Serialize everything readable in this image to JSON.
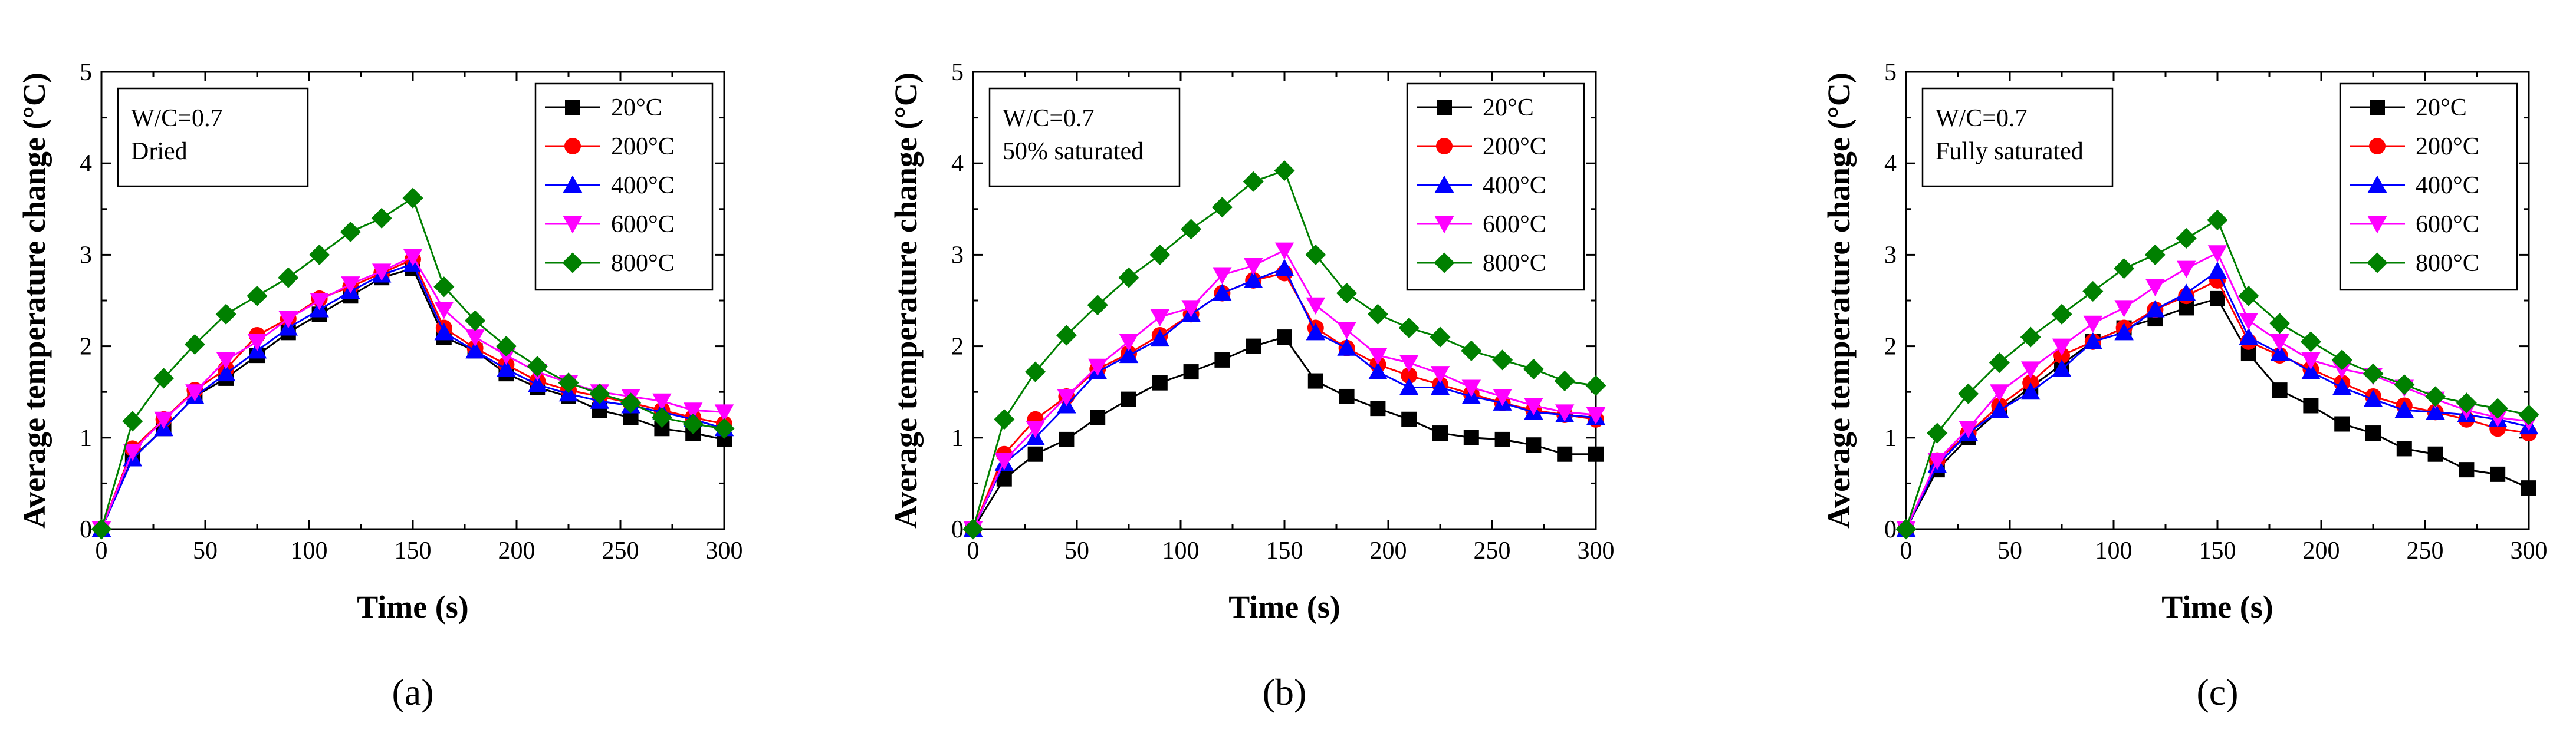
{
  "colors": {
    "20": "#000000",
    "200": "#ff0000",
    "400": "#0000ff",
    "600": "#ff00ff",
    "800": "#008000"
  },
  "marker_names": {
    "20": "square",
    "200": "circle",
    "400": "triangle-up",
    "600": "triangle-down",
    "800": "diamond"
  },
  "chart_data": [
    {
      "type": "line",
      "panel_label": "(a)",
      "annotation": [
        "W/C=0.7",
        "Dried"
      ],
      "xlabel": "Time (s)",
      "ylabel": "Average temperature change (°C)",
      "xlim": [
        0,
        300
      ],
      "ylim": [
        0,
        5
      ],
      "xticks": [
        0,
        50,
        100,
        150,
        200,
        250,
        300
      ],
      "yticks": [
        0,
        1,
        2,
        3,
        4,
        5
      ],
      "legend": "top-right",
      "grid": false,
      "x": [
        0,
        15,
        30,
        45,
        60,
        75,
        90,
        105,
        120,
        135,
        150,
        165,
        180,
        195,
        210,
        225,
        240,
        255,
        270,
        285,
        300
      ],
      "series": [
        {
          "name": "20°C",
          "key": "20",
          "values": [
            0,
            0.78,
            1.1,
            1.45,
            1.65,
            1.9,
            2.15,
            2.35,
            2.55,
            2.75,
            2.85,
            2.1,
            1.95,
            1.7,
            1.55,
            1.45,
            1.3,
            1.22,
            1.1,
            1.05,
            0.98
          ]
        },
        {
          "name": "200°C",
          "key": "200",
          "values": [
            0,
            0.88,
            1.2,
            1.52,
            1.75,
            2.12,
            2.3,
            2.52,
            2.65,
            2.8,
            2.95,
            2.2,
            1.98,
            1.8,
            1.62,
            1.52,
            1.45,
            1.38,
            1.3,
            1.22,
            1.15
          ]
        },
        {
          "name": "400°C",
          "key": "400",
          "values": [
            0,
            0.77,
            1.1,
            1.45,
            1.7,
            1.95,
            2.2,
            2.4,
            2.6,
            2.78,
            2.9,
            2.15,
            1.95,
            1.75,
            1.58,
            1.48,
            1.4,
            1.35,
            1.28,
            1.2,
            1.1
          ]
        },
        {
          "name": "600°C",
          "key": "600",
          "values": [
            0,
            0.85,
            1.2,
            1.5,
            1.85,
            2.05,
            2.3,
            2.5,
            2.68,
            2.82,
            2.98,
            2.4,
            2.1,
            1.9,
            1.72,
            1.6,
            1.5,
            1.45,
            1.4,
            1.3,
            1.28
          ]
        },
        {
          "name": "800°C",
          "key": "800",
          "values": [
            0,
            1.18,
            1.65,
            2.02,
            2.35,
            2.55,
            2.75,
            3.0,
            3.25,
            3.4,
            3.62,
            2.65,
            2.28,
            2.0,
            1.78,
            1.6,
            1.48,
            1.38,
            1.22,
            1.15,
            1.1
          ]
        }
      ]
    },
    {
      "type": "line",
      "panel_label": "(b)",
      "annotation": [
        "W/C=0.7",
        "50% saturated"
      ],
      "xlabel": "Time (s)",
      "ylabel": "Average temperature change (°C)",
      "xlim": [
        0,
        300
      ],
      "ylim": [
        0,
        5
      ],
      "xticks": [
        0,
        50,
        100,
        150,
        200,
        250,
        300
      ],
      "yticks": [
        0,
        1,
        2,
        3,
        4,
        5
      ],
      "legend": "top-right",
      "grid": false,
      "x": [
        0,
        15,
        30,
        45,
        60,
        75,
        90,
        105,
        120,
        135,
        150,
        165,
        180,
        195,
        210,
        225,
        240,
        255,
        270,
        285,
        300
      ],
      "series": [
        {
          "name": "20°C",
          "key": "20",
          "values": [
            0,
            0.55,
            0.82,
            0.98,
            1.22,
            1.42,
            1.6,
            1.72,
            1.85,
            2.0,
            2.1,
            1.62,
            1.45,
            1.32,
            1.2,
            1.05,
            1.0,
            0.98,
            0.92,
            0.82,
            0.82
          ]
        },
        {
          "name": "200°C",
          "key": "200",
          "values": [
            0,
            0.82,
            1.2,
            1.45,
            1.75,
            1.92,
            2.12,
            2.35,
            2.58,
            2.72,
            2.8,
            2.2,
            1.98,
            1.8,
            1.68,
            1.58,
            1.48,
            1.38,
            1.3,
            1.25,
            1.2
          ]
        },
        {
          "name": "400°C",
          "key": "400",
          "values": [
            0,
            0.72,
            1.0,
            1.35,
            1.72,
            1.9,
            2.08,
            2.35,
            2.58,
            2.72,
            2.85,
            2.15,
            1.98,
            1.72,
            1.55,
            1.55,
            1.45,
            1.38,
            1.28,
            1.25,
            1.22
          ]
        },
        {
          "name": "600°C",
          "key": "600",
          "values": [
            0,
            0.75,
            1.1,
            1.45,
            1.78,
            2.05,
            2.32,
            2.42,
            2.78,
            2.88,
            3.05,
            2.45,
            2.18,
            1.9,
            1.82,
            1.7,
            1.55,
            1.45,
            1.35,
            1.28,
            1.25
          ]
        },
        {
          "name": "800°C",
          "key": "800",
          "values": [
            0,
            1.2,
            1.72,
            2.12,
            2.45,
            2.75,
            3.0,
            3.28,
            3.52,
            3.8,
            3.92,
            3.0,
            2.58,
            2.35,
            2.2,
            2.1,
            1.95,
            1.85,
            1.75,
            1.62,
            1.57
          ]
        }
      ]
    },
    {
      "type": "line",
      "panel_label": "(c)",
      "annotation": [
        "W/C=0.7",
        "Fully saturated"
      ],
      "xlabel": "Time (s)",
      "ylabel": "Average temperature change (°C)",
      "xlim": [
        0,
        300
      ],
      "ylim": [
        0,
        5
      ],
      "xticks": [
        0,
        50,
        100,
        150,
        200,
        250,
        300
      ],
      "yticks": [
        0,
        1,
        2,
        3,
        4,
        5
      ],
      "legend": "top-right",
      "grid": false,
      "x": [
        0,
        15,
        30,
        45,
        60,
        75,
        90,
        105,
        120,
        135,
        150,
        165,
        180,
        195,
        210,
        225,
        240,
        255,
        270,
        285,
        300
      ],
      "series": [
        {
          "name": "20°C",
          "key": "20",
          "values": [
            0,
            0.65,
            1.0,
            1.3,
            1.55,
            1.8,
            2.05,
            2.2,
            2.3,
            2.42,
            2.52,
            1.92,
            1.52,
            1.35,
            1.15,
            1.05,
            0.88,
            0.82,
            0.65,
            0.6,
            0.45
          ]
        },
        {
          "name": "200°C",
          "key": "200",
          "values": [
            0,
            0.75,
            1.05,
            1.35,
            1.6,
            1.9,
            2.05,
            2.2,
            2.4,
            2.55,
            2.72,
            2.05,
            1.9,
            1.75,
            1.6,
            1.45,
            1.35,
            1.28,
            1.2,
            1.1,
            1.05
          ]
        },
        {
          "name": "400°C",
          "key": "400",
          "values": [
            0,
            0.7,
            1.05,
            1.3,
            1.5,
            1.75,
            2.05,
            2.15,
            2.4,
            2.58,
            2.82,
            2.1,
            1.92,
            1.72,
            1.55,
            1.42,
            1.3,
            1.28,
            1.25,
            1.2,
            1.12
          ]
        },
        {
          "name": "600°C",
          "key": "600",
          "values": [
            0,
            0.75,
            1.1,
            1.5,
            1.75,
            2.0,
            2.25,
            2.42,
            2.65,
            2.85,
            3.02,
            2.28,
            2.05,
            1.85,
            1.75,
            1.68,
            1.55,
            1.42,
            1.3,
            1.22,
            1.18
          ]
        },
        {
          "name": "800°C",
          "key": "800",
          "values": [
            0,
            1.05,
            1.48,
            1.82,
            2.1,
            2.35,
            2.6,
            2.85,
            3.0,
            3.18,
            3.38,
            2.55,
            2.25,
            2.05,
            1.85,
            1.7,
            1.58,
            1.45,
            1.38,
            1.32,
            1.25
          ]
        }
      ]
    }
  ]
}
